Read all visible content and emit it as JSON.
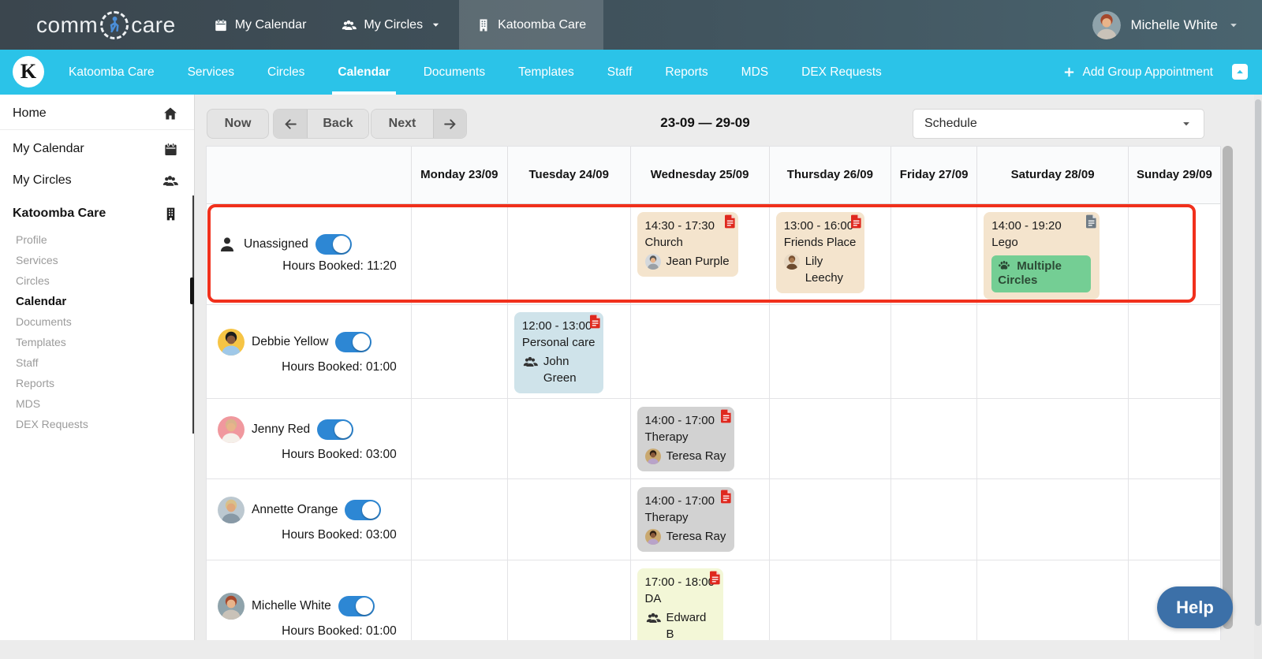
{
  "colors": {
    "brand_cyan": "#2bc3e8",
    "topbar_dark": "#3f4a51",
    "toggle_blue": "#2d87d4",
    "highlight_red": "#f1301c",
    "doc_icon_red": "#df281e",
    "doc_icon_gray": "#6e7a84",
    "event_tan": "#f4e4cd",
    "event_blue": "#cfe3ea",
    "event_gray": "#d2d2d2",
    "event_yellow": "#f3f7d7",
    "badge_green": "#74ce94",
    "help_blue": "#3c70a8"
  },
  "topbar": {
    "logo_left": "comm",
    "logo_right": "care",
    "nav": [
      {
        "label": "My Calendar",
        "icon": "calendar"
      },
      {
        "label": "My Circles",
        "icon": "users",
        "caret": true
      },
      {
        "label": "Katoomba Care",
        "icon": "building",
        "active": true
      }
    ],
    "user_name": "Michelle White"
  },
  "orgbar": {
    "logo_letter": "K",
    "items": [
      {
        "label": "Katoomba Care"
      },
      {
        "label": "Services"
      },
      {
        "label": "Circles"
      },
      {
        "label": "Calendar",
        "active": true
      },
      {
        "label": "Documents"
      },
      {
        "label": "Templates"
      },
      {
        "label": "Staff"
      },
      {
        "label": "Reports"
      },
      {
        "label": "MDS"
      },
      {
        "label": "DEX Requests"
      }
    ],
    "add_group_appointment": "Add Group Appointment"
  },
  "sidebar": {
    "items": [
      {
        "label": "Home",
        "icon": "home"
      },
      {
        "label": "My Calendar",
        "icon": "calendar"
      },
      {
        "label": "My Circles",
        "icon": "users"
      }
    ],
    "org": {
      "label": "Katoomba Care",
      "icon": "building"
    },
    "org_items": [
      {
        "label": "Profile"
      },
      {
        "label": "Services"
      },
      {
        "label": "Circles"
      },
      {
        "label": "Calendar",
        "active": true
      },
      {
        "label": "Documents"
      },
      {
        "label": "Templates"
      },
      {
        "label": "Staff"
      },
      {
        "label": "Reports"
      },
      {
        "label": "MDS"
      },
      {
        "label": "DEX Requests"
      }
    ]
  },
  "toolbar": {
    "now": "Now",
    "back": "Back",
    "next": "Next",
    "date_range": "23-09 — 29-09",
    "view_select": "Schedule"
  },
  "calendar": {
    "day_headers": [
      "Monday 23/09",
      "Tuesday 24/09",
      "Wednesday 25/09",
      "Thursday 26/09",
      "Friday 27/09",
      "Saturday 28/09",
      "Sunday 29/09"
    ],
    "rows": [
      {
        "name": "Unassigned",
        "avatar": "silhouette",
        "toggle_on": true,
        "hours": "Hours Booked: 11:20",
        "highlighted": true,
        "events": [
          {
            "day": 2,
            "time": "14:30 - 17:30",
            "title": "Church",
            "attendee": "Jean Purple",
            "avatar": "jean",
            "theme": "tan",
            "doc": "red"
          },
          {
            "day": 3,
            "time": "13:00 - 16:00",
            "title": "Friends Place",
            "attendee": "Lily\nLeechy",
            "avatar": "lily",
            "theme": "tan",
            "doc": "red"
          },
          {
            "day": 5,
            "time": "14:00 - 19:20",
            "title": "Lego",
            "badge": "Multiple Circles",
            "theme": "tan",
            "doc": "gray"
          }
        ]
      },
      {
        "name": "Debbie Yellow",
        "avatar": "debbie",
        "toggle_on": true,
        "hours": "Hours Booked: 01:00",
        "events": [
          {
            "day": 1,
            "time": "12:00 - 13:00",
            "title": "Personal care",
            "attendee": "John\nGreen",
            "avatar": "group",
            "theme": "blue",
            "doc": "red"
          }
        ]
      },
      {
        "name": "Jenny Red",
        "avatar": "jenny",
        "toggle_on": true,
        "hours": "Hours Booked: 03:00",
        "events": [
          {
            "day": 2,
            "time": "14:00 - 17:00",
            "title": "Therapy",
            "attendee": "Teresa Ray",
            "avatar": "teresa",
            "theme": "gray",
            "doc": "red"
          }
        ]
      },
      {
        "name": "Annette Orange",
        "avatar": "annette",
        "toggle_on": true,
        "hours": "Hours Booked: 03:00",
        "events": [
          {
            "day": 2,
            "time": "14:00 - 17:00",
            "title": "Therapy",
            "attendee": "Teresa Ray",
            "avatar": "teresa",
            "theme": "gray",
            "doc": "red"
          }
        ]
      },
      {
        "name": "Michelle White",
        "avatar": "michelle",
        "toggle_on": true,
        "hours": "Hours Booked: 01:00",
        "events": [
          {
            "day": 2,
            "time": "17:00 - 18:00",
            "title": "DA",
            "attendee": "Edward\nB",
            "avatar": "group",
            "theme": "yellow",
            "doc": "red"
          }
        ]
      }
    ]
  },
  "help_label": "Help"
}
